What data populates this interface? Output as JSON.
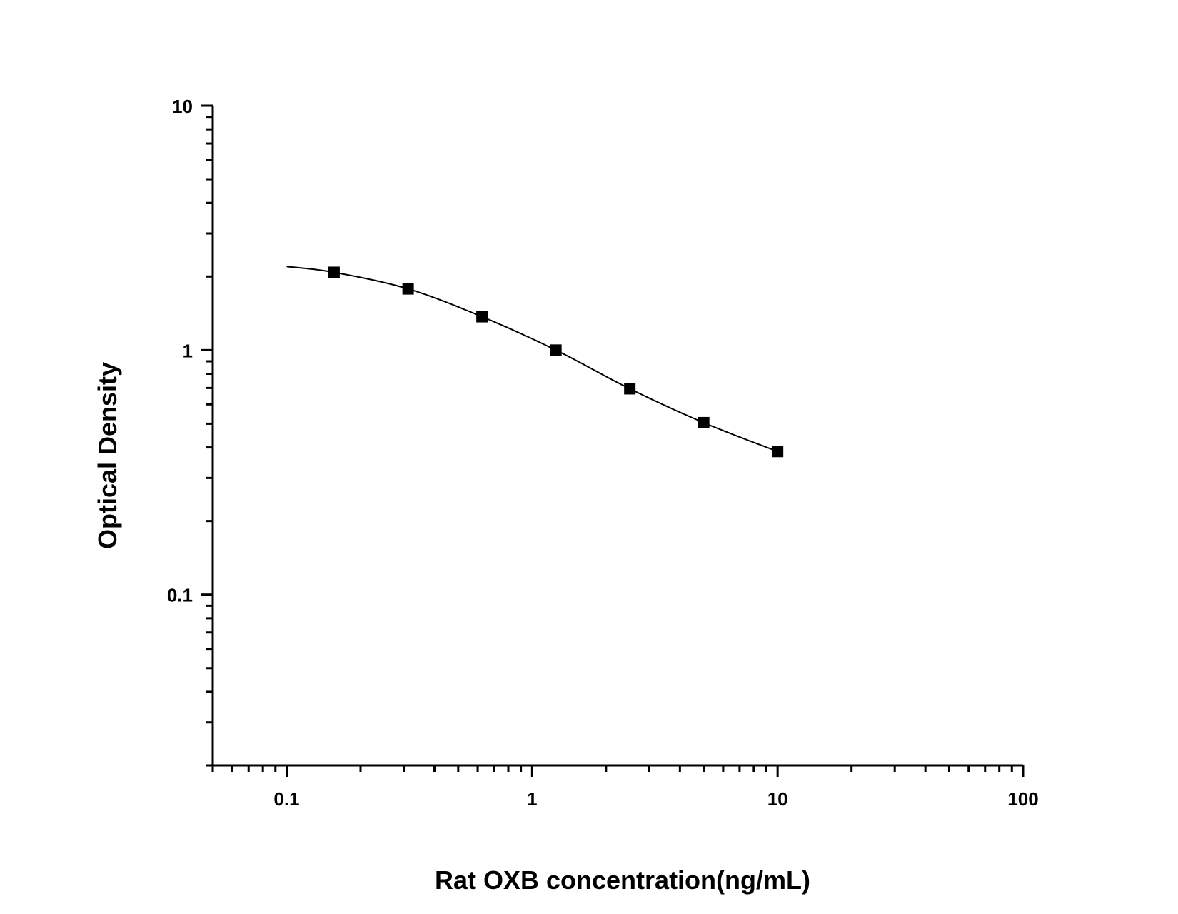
{
  "chart_data": {
    "type": "scatter",
    "title": "",
    "xlabel": "Rat OXB concentration(ng/mL)",
    "ylabel": "Optical Density",
    "x_scale": "log",
    "y_scale": "log",
    "xlim": [
      0.05,
      100
    ],
    "ylim": [
      0.02,
      10
    ],
    "x_ticks": [
      {
        "value": 0.1,
        "label": "0.1"
      },
      {
        "value": 1,
        "label": "1"
      },
      {
        "value": 10,
        "label": "10"
      },
      {
        "value": 100,
        "label": "100"
      }
    ],
    "y_ticks": [
      {
        "value": 0.1,
        "label": "0.1"
      },
      {
        "value": 1,
        "label": "1"
      },
      {
        "value": 10,
        "label": "10"
      }
    ],
    "grid": false,
    "legend": "none",
    "series": [
      {
        "points": [
          {
            "x": 0.156,
            "y": 2.08
          },
          {
            "x": 0.3125,
            "y": 1.78
          },
          {
            "x": 0.625,
            "y": 1.37
          },
          {
            "x": 1.25,
            "y": 1.0
          },
          {
            "x": 2.5,
            "y": 0.695
          },
          {
            "x": 5,
            "y": 0.505
          },
          {
            "x": 10,
            "y": 0.385
          }
        ],
        "fit_curve": {
          "x_range": [
            0.1,
            10
          ]
        }
      }
    ],
    "colors": {
      "axis": "#000000",
      "marker": "#000000",
      "curve": "#000000",
      "background": "#ffffff"
    }
  }
}
